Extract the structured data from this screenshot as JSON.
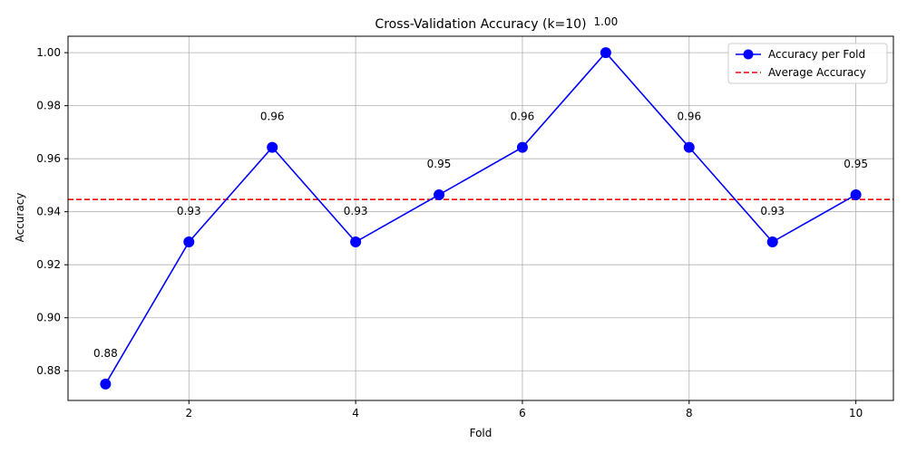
{
  "chart_data": {
    "type": "line",
    "title": "Cross-Validation Accuracy (k=10)",
    "xlabel": "Fold",
    "ylabel": "Accuracy",
    "x": [
      1,
      2,
      3,
      4,
      5,
      6,
      7,
      8,
      9,
      10
    ],
    "series": [
      {
        "name": "Accuracy per Fold",
        "values": [
          0.875,
          0.9286,
          0.9643,
          0.9286,
          0.9464,
          0.9643,
          1.0,
          0.9643,
          0.9286,
          0.9464
        ],
        "color": "#0000ff",
        "marker": "circle"
      }
    ],
    "data_labels": [
      "0.88",
      "0.93",
      "0.96",
      "0.93",
      "0.95",
      "0.96",
      "1.00",
      "0.96",
      "0.93",
      "0.95"
    ],
    "reference_lines": [
      {
        "name": "Average Accuracy",
        "value": 0.9446,
        "color": "#ff0000",
        "style": "dashed"
      }
    ],
    "xlim": [
      0.55,
      10.45
    ],
    "ylim": [
      0.8688,
      1.0062
    ],
    "xticks": [
      2,
      4,
      6,
      8,
      10
    ],
    "xtick_labels": [
      "2",
      "4",
      "6",
      "8",
      "10"
    ],
    "yticks": [
      0.88,
      0.9,
      0.92,
      0.94,
      0.96,
      0.98,
      1.0
    ],
    "ytick_labels": [
      "0.88",
      "0.90",
      "0.92",
      "0.94",
      "0.96",
      "0.98",
      "1.00"
    ],
    "grid": true,
    "legend_position": "top-right"
  }
}
